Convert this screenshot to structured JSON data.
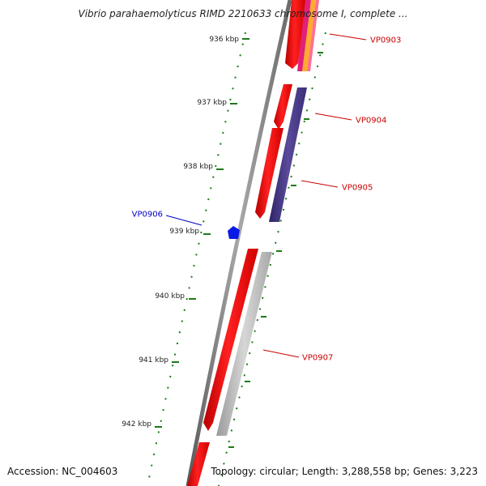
{
  "title": "Vibrio parahaemolyticus RIMD 2210633 chromosome I, complete ...",
  "footer": {
    "accession": "Accession: NC_004603",
    "summary": "Topology: circular; Length: 3,288,558 bp; Genes: 3,223"
  },
  "ruler_ticks": [
    "936 kbp",
    "937 kbp",
    "938 kbp",
    "939 kbp",
    "940 kbp",
    "941 kbp",
    "942 kbp"
  ],
  "genes": [
    {
      "label": "VP0903",
      "color": "#cc0000"
    },
    {
      "label": "VP0904",
      "color": "#cc0000"
    },
    {
      "label": "VP0905",
      "color": "#cc0000"
    },
    {
      "label": "VP0906",
      "color": "#0000cc"
    },
    {
      "label": "VP0907",
      "color": "#cc0000"
    }
  ],
  "colors": {
    "backbone": "#8a8a8a",
    "cds": "#ff1a1a",
    "tick": "#1a7a1a",
    "blue_gene": "#0a1ae6",
    "purple_band": "#4a3a8a",
    "gray_band": "#b8b8b8",
    "pink_band": "#e0207a",
    "orange_band": "#ffaa30"
  }
}
